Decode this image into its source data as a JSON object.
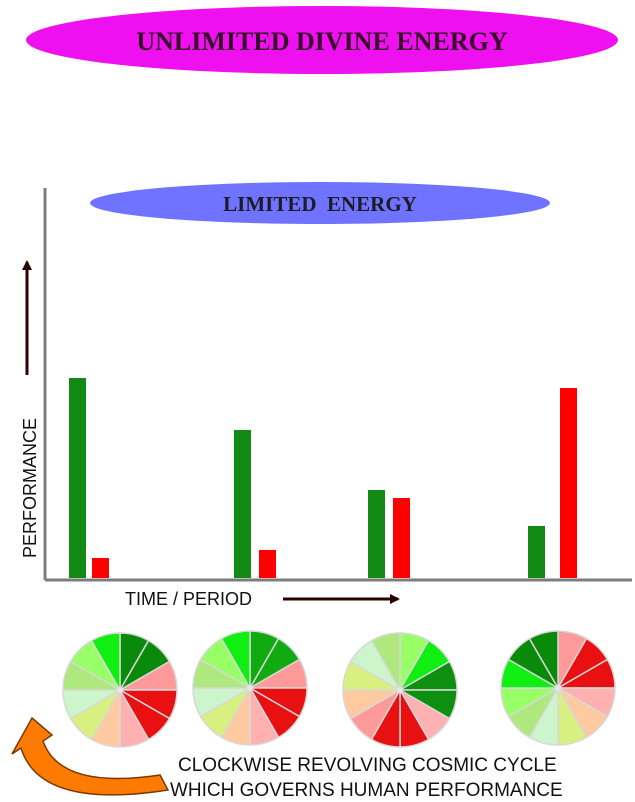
{
  "top_banner": {
    "text": "UNLIMITED DIVINE ENERGY",
    "fill": "#ee10ee",
    "text_color": "#3a0a2a"
  },
  "inner_banner": {
    "text": "LIMITED  ENERGY",
    "fill": "#6f73ff",
    "text_color": "#1c1c24"
  },
  "axes": {
    "y_label": "PERFORMANCE",
    "x_label": "TIME / PERIOD",
    "axis_color": "#7c7c7c",
    "arrow_color": "#2a0000"
  },
  "chart_data": {
    "type": "bar",
    "categories": [
      "",
      "",
      "",
      ""
    ],
    "series": [
      {
        "color": "#138a13",
        "values": [
          100,
          74,
          44,
          26
        ]
      },
      {
        "color": "#ff0000",
        "values": [
          10,
          14,
          40,
          95
        ]
      }
    ],
    "ylim": [
      0,
      100
    ],
    "grid": false
  },
  "cycle_wheels": [
    {
      "slices": [
        "#0a8a0a",
        "#0a8a0a",
        "#ff9a9a",
        "#e81010",
        "#e81010",
        "#ffb0b0",
        "#ffcaa0",
        "#d8f080",
        "#ccf5cc",
        "#b0e880",
        "#99ff66",
        "#11ee11"
      ]
    },
    {
      "slices": [
        "#11aa11",
        "#11aa11",
        "#ff9a9a",
        "#e81010",
        "#e81010",
        "#ffb0b0",
        "#ffcaa0",
        "#d8f080",
        "#ccf5cc",
        "#b0e880",
        "#99ff66",
        "#11ee11"
      ]
    },
    {
      "slices": [
        "#99ff66",
        "#11ee11",
        "#0f8f0f",
        "#0f8f0f",
        "#ffb0b0",
        "#e81010",
        "#e81010",
        "#ff9a9a",
        "#ffcaa0",
        "#d8f080",
        "#ccf5cc",
        "#b0e880"
      ]
    },
    {
      "slices": [
        "#ff9a9a",
        "#e81010",
        "#e81010",
        "#ffb0b0",
        "#ffcaa0",
        "#d8f080",
        "#ccf5cc",
        "#b0e880",
        "#99ff66",
        "#11ee11",
        "#0a8a0a",
        "#0a8a0a"
      ]
    }
  ],
  "caption": {
    "line1": "CLOCKWISE REVOLVING COSMIC CYCLE",
    "line2": "WHICH GOVERNS HUMAN PERFORMANCE",
    "color": "#111111"
  },
  "curved_arrow": {
    "color": "#ff7a00",
    "icon": "curved-arrow-icon"
  }
}
